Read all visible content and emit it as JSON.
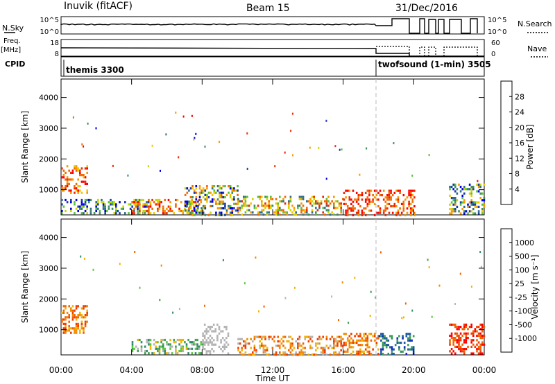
{
  "header": {
    "station": "Inuvik (fitACF)",
    "beam": "Beam 15",
    "date": "31/Dec/2016"
  },
  "top_panels": {
    "nsky_label": "N.Sky",
    "nsearch_label": "N.Search",
    "nsky_ticks": [
      "10^5",
      "10^0"
    ],
    "nsearch_ticks": [
      "10^5",
      "10^0"
    ],
    "freq_label_1": "Freq.",
    "freq_label_2": "[MHz]",
    "freq_ticks": [
      "18",
      "8"
    ],
    "nave_label": "Nave",
    "nave_ticks": [
      "60",
      "0"
    ],
    "cpid_label": "CPID",
    "cpid_segments": [
      {
        "name": "themis 3300",
        "start_hour": 0,
        "end_hour": 18
      },
      {
        "name": "twofsound (1-min) 3505",
        "start_hour": 18,
        "end_hour": 24
      }
    ]
  },
  "chart_data": [
    {
      "type": "heatmap",
      "title": "",
      "quantity": "Power",
      "colorbar_label": "Power [dB]",
      "colorbar_ticks": [
        "28",
        "24",
        "20",
        "16",
        "12",
        "8",
        "4"
      ],
      "colorbar_colors": [
        "#0000e6",
        "#1c3aa8",
        "#2e6f8a",
        "#3f8f5a",
        "#58c03a",
        "#c8d800",
        "#f0c800",
        "#f59a00",
        "#f06a00",
        "#f02800",
        "#ff0000"
      ],
      "ylabel": "Slant Range [km]",
      "xlabel": "",
      "y_ticks": [
        1000,
        2000,
        3000,
        4000
      ],
      "ylim": [
        180,
        4600
      ],
      "xlim": [
        0,
        24
      ],
      "x_ticks": [
        "00:00",
        "04:00",
        "08:00",
        "12:00",
        "16:00",
        "20:00",
        "00:00"
      ],
      "regions": [
        {
          "x": [
            0.0,
            1.5
          ],
          "y": [
            900,
            1800
          ],
          "dominant": "20-28 dB"
        },
        {
          "x": [
            0.0,
            5.0
          ],
          "y": [
            200,
            700
          ],
          "dominant": "4-16 dB"
        },
        {
          "x": [
            4.0,
            8.0
          ],
          "y": [
            200,
            700
          ],
          "dominant": "16-28 dB"
        },
        {
          "x": [
            7.0,
            10.0
          ],
          "y": [
            200,
            1150
          ],
          "dominant": "4-24 dB"
        },
        {
          "x": [
            10.0,
            16.0
          ],
          "y": [
            200,
            800
          ],
          "dominant": "8-24 dB"
        },
        {
          "x": [
            16.0,
            20.0
          ],
          "y": [
            200,
            1000
          ],
          "dominant": "24-28 dB"
        },
        {
          "x": [
            22.0,
            24.0
          ],
          "y": [
            200,
            1200
          ],
          "dominant": "4-20 dB"
        }
      ]
    },
    {
      "type": "heatmap",
      "title": "",
      "quantity": "Velocity",
      "colorbar_label": "Velocity [m s⁻¹]",
      "colorbar_ticks": [
        "1000",
        "500",
        "100",
        "25",
        "-25",
        "-100",
        "-500",
        "-1000"
      ],
      "colorbar_colors": [
        "#1428c8",
        "#1e5aa0",
        "#2e8a6a",
        "#3fa050",
        "#58c83a",
        "#b4b4b4",
        "#f0b400",
        "#f08c00",
        "#f06400",
        "#f03c00",
        "#ff0000"
      ],
      "ylabel": "Slant Range [km]",
      "xlabel": "Time UT",
      "y_ticks": [
        1000,
        2000,
        3000,
        4000
      ],
      "ylim": [
        180,
        4600
      ],
      "xlim": [
        0,
        24
      ],
      "x_ticks": [
        "00:00",
        "04:00",
        "08:00",
        "12:00",
        "16:00",
        "20:00",
        "00:00"
      ],
      "regions": [
        {
          "x": [
            0.0,
            1.5
          ],
          "y": [
            900,
            1800
          ],
          "dominant": "-100 to -500"
        },
        {
          "x": [
            4.0,
            8.0
          ],
          "y": [
            200,
            700
          ],
          "dominant": "25 to 100"
        },
        {
          "x": [
            8.0,
            9.5
          ],
          "y": [
            200,
            1200
          ],
          "dominant": "-25 to 25"
        },
        {
          "x": [
            10.0,
            16.0
          ],
          "y": [
            200,
            800
          ],
          "dominant": "-25 to -500"
        },
        {
          "x": [
            16.0,
            18.0
          ],
          "y": [
            200,
            900
          ],
          "dominant": "-100 to -500"
        },
        {
          "x": [
            18.0,
            20.0
          ],
          "y": [
            200,
            900
          ],
          "dominant": "500 to 1000"
        },
        {
          "x": [
            22.0,
            24.0
          ],
          "y": [
            200,
            1200
          ],
          "dominant": "-500 to -1000"
        }
      ]
    }
  ]
}
